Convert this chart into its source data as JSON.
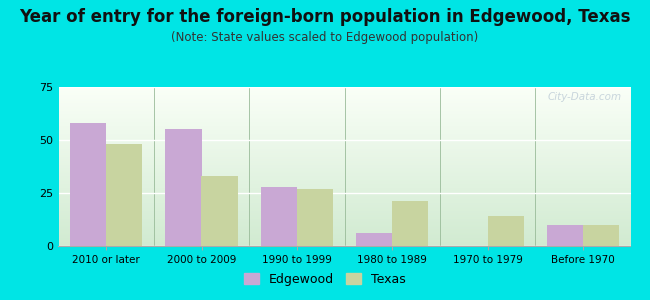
{
  "categories": [
    "2010 or later",
    "2000 to 2009",
    "1990 to 1999",
    "1980 to 1989",
    "1970 to 1979",
    "Before 1970"
  ],
  "edgewood_values": [
    58,
    55,
    28,
    6,
    0,
    10
  ],
  "texas_values": [
    48,
    33,
    27,
    21,
    14,
    10
  ],
  "edgewood_color": "#c9a8d4",
  "texas_color": "#c8d4a0",
  "title": "Year of entry for the foreign-born population in Edgewood, Texas",
  "subtitle": "(Note: State values scaled to Edgewood population)",
  "ylim": [
    0,
    75
  ],
  "yticks": [
    0,
    25,
    50,
    75
  ],
  "background_outer": "#00e5e5",
  "background_inner_top": "#f5faf5",
  "background_inner_bottom": "#ddf0dd",
  "legend_edgewood": "Edgewood",
  "legend_texas": "Texas",
  "title_fontsize": 12,
  "subtitle_fontsize": 8.5,
  "watermark": "City-Data.com"
}
